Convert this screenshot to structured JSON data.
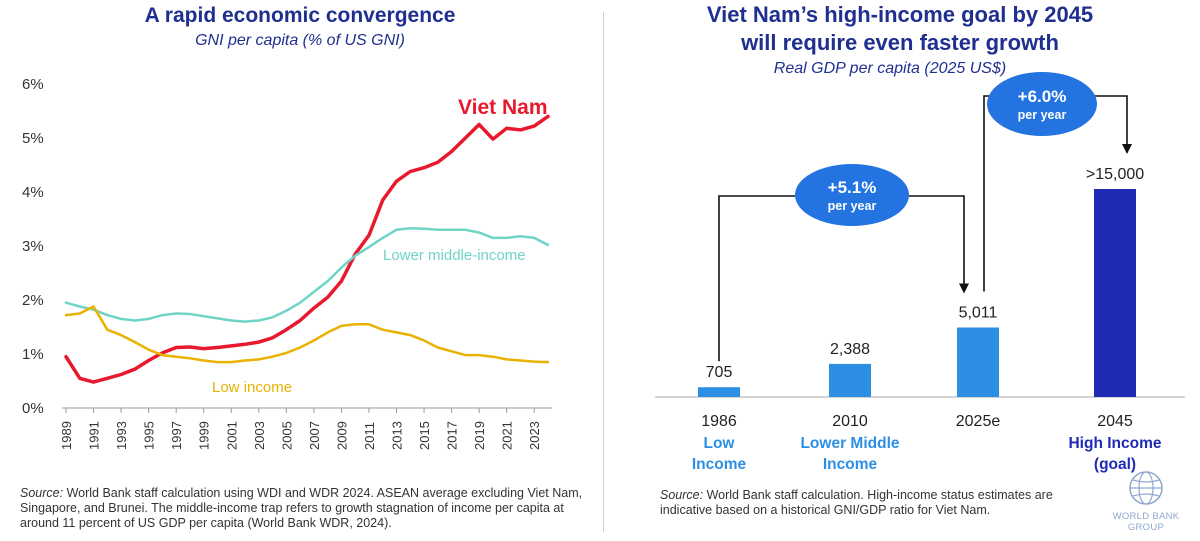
{
  "left": {
    "title": "A rapid economic convergence",
    "subtitle": "GNI per capita (% of US GNI)",
    "source_label": "Source:",
    "source_text": " World Bank staff calculation using WDI and WDR 2024. ASEAN average excluding Viet Nam, Singapore, and Brunei. The middle-income trap refers to growth stagnation of income per capita at around 11 percent of US GDP per capita (World Bank WDR, 2024)."
  },
  "right": {
    "title_line1": "Viet Nam’s high-income goal by 2045",
    "title_line2": "will require even faster growth",
    "subtitle": "Real GDP per capita (2025 US$)",
    "source_label": "Source:",
    "source_text": " World Bank staff calculation. High-income status estimates are indicative based on a historical GNI/GDP ratio for Viet Nam.",
    "logo_text": "WORLD BANK GROUP"
  },
  "colors": {
    "vietnam": "#e8192c",
    "lower_middle": "#6ed4c6",
    "low_income": "#e9b200",
    "bar_light": "#2d8fe3",
    "bar_dark": "#1f2bb5",
    "bubble": "#2374e1",
    "title": "#1f2f8f"
  },
  "chart_data": [
    {
      "type": "line",
      "title": "A rapid economic convergence",
      "ylabel": "GNI per capita (% of US GNI)",
      "ylim": [
        0,
        6
      ],
      "yticks": [
        "0%",
        "1%",
        "2%",
        "3%",
        "4%",
        "5%",
        "6%"
      ],
      "xticks": [
        "1989",
        "1991",
        "1993",
        "1995",
        "1997",
        "1999",
        "2001",
        "2003",
        "2005",
        "2007",
        "2009",
        "2011",
        "2013",
        "2015",
        "2017",
        "2019",
        "2021",
        "2023"
      ],
      "x": [
        1989,
        1990,
        1991,
        1992,
        1993,
        1994,
        1995,
        1996,
        1997,
        1998,
        1999,
        2000,
        2001,
        2002,
        2003,
        2004,
        2005,
        2006,
        2007,
        2008,
        2009,
        2010,
        2011,
        2012,
        2013,
        2014,
        2015,
        2016,
        2017,
        2018,
        2019,
        2020,
        2021,
        2022,
        2023,
        2024
      ],
      "series": [
        {
          "name": "Viet Nam",
          "label": "Viet Nam",
          "color_key": "vietnam",
          "values": [
            0.95,
            0.55,
            0.48,
            0.55,
            0.62,
            0.72,
            0.88,
            1.02,
            1.12,
            1.13,
            1.1,
            1.12,
            1.15,
            1.18,
            1.22,
            1.3,
            1.45,
            1.62,
            1.85,
            2.05,
            2.35,
            2.85,
            3.2,
            3.85,
            4.2,
            4.38,
            4.45,
            4.55,
            4.75,
            5.0,
            5.25,
            4.98,
            5.18,
            5.15,
            5.22,
            5.4
          ]
        },
        {
          "name": "Lower middle-income",
          "label": "Lower middle-income",
          "color_key": "lower_middle",
          "values": [
            1.95,
            1.88,
            1.82,
            1.72,
            1.65,
            1.62,
            1.65,
            1.72,
            1.75,
            1.74,
            1.7,
            1.66,
            1.62,
            1.6,
            1.62,
            1.68,
            1.8,
            1.95,
            2.15,
            2.35,
            2.6,
            2.82,
            2.98,
            3.15,
            3.3,
            3.33,
            3.32,
            3.3,
            3.3,
            3.3,
            3.25,
            3.15,
            3.15,
            3.18,
            3.15,
            3.02
          ]
        },
        {
          "name": "Low income",
          "label": "Low income",
          "color_key": "low_income",
          "values": [
            1.72,
            1.75,
            1.88,
            1.45,
            1.35,
            1.22,
            1.08,
            0.98,
            0.95,
            0.92,
            0.88,
            0.85,
            0.85,
            0.88,
            0.9,
            0.95,
            1.02,
            1.12,
            1.25,
            1.4,
            1.52,
            1.55,
            1.55,
            1.45,
            1.4,
            1.35,
            1.25,
            1.12,
            1.05,
            0.98,
            0.98,
            0.95,
            0.9,
            0.88,
            0.86,
            0.85
          ]
        }
      ]
    },
    {
      "type": "bar",
      "title": "Viet Nam’s high-income goal by 2045 will require even faster growth",
      "ylabel": "Real GDP per capita (2025 US$)",
      "ylim": [
        0,
        15500
      ],
      "categories": [
        "1986",
        "2010",
        "2025e",
        "2045"
      ],
      "category_sublabels": [
        [
          "Low",
          "Income"
        ],
        [
          "Lower Middle",
          "Income"
        ],
        [
          ""
        ],
        [
          "High Income",
          "(goal)"
        ]
      ],
      "values": [
        705,
        2388,
        5011,
        15000
      ],
      "value_labels": [
        "705",
        "2,388",
        "5,011",
        ">15,000"
      ],
      "bar_colors": [
        "bar_light",
        "bar_light",
        "bar_light",
        "bar_dark"
      ],
      "annotations": [
        {
          "label": "+5.1%",
          "sub": "per year",
          "from": "1986",
          "to": "2025e"
        },
        {
          "label": "+6.0%",
          "sub": "per year",
          "from": "2025e",
          "to": "2045"
        }
      ]
    }
  ]
}
